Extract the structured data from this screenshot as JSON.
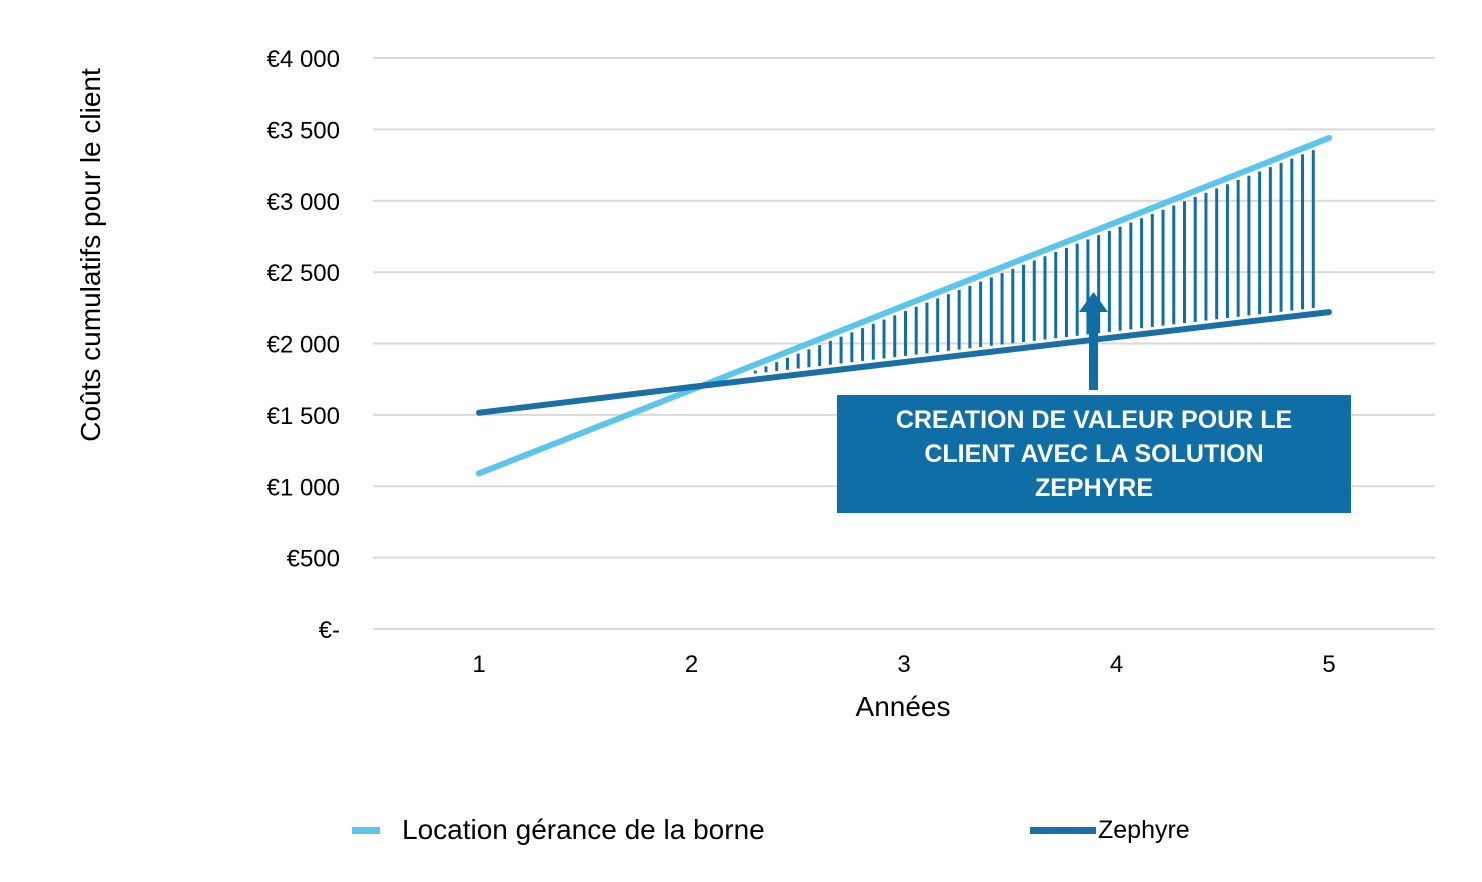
{
  "chart_data": {
    "type": "line",
    "x": [
      1,
      2,
      3,
      4,
      5
    ],
    "xlabel": "Années",
    "ylabel": "Coûts cumulatifs pour le client",
    "ylim": [
      0,
      4000
    ],
    "yticks": [
      0,
      500,
      1000,
      1500,
      2000,
      2500,
      3000,
      3500,
      4000
    ],
    "ytick_labels": [
      "€-",
      "€500",
      "€1 000",
      "€1 500",
      "€2 000",
      "€2 500",
      "€3 000",
      "€3 500",
      "€4 000"
    ],
    "xtick_labels": [
      "1",
      "2",
      "3",
      "4",
      "5"
    ],
    "grid": "horizontal",
    "legend_position": "bottom",
    "series": [
      {
        "name": "Location gérance de la borne",
        "values": [
          1090,
          1675,
          2265,
          2850,
          3440
        ],
        "color": "#5bc5ec"
      },
      {
        "name": "Zephyre",
        "values": [
          1515,
          1695,
          1870,
          2045,
          2220
        ],
        "color": "#1a6fa5"
      }
    ],
    "annotation": {
      "text": "CREATION DE VALEUR POUR LE CLIENT AVEC LA SOLUTION ZEPHYRE",
      "color": "#0f6ea6"
    }
  }
}
